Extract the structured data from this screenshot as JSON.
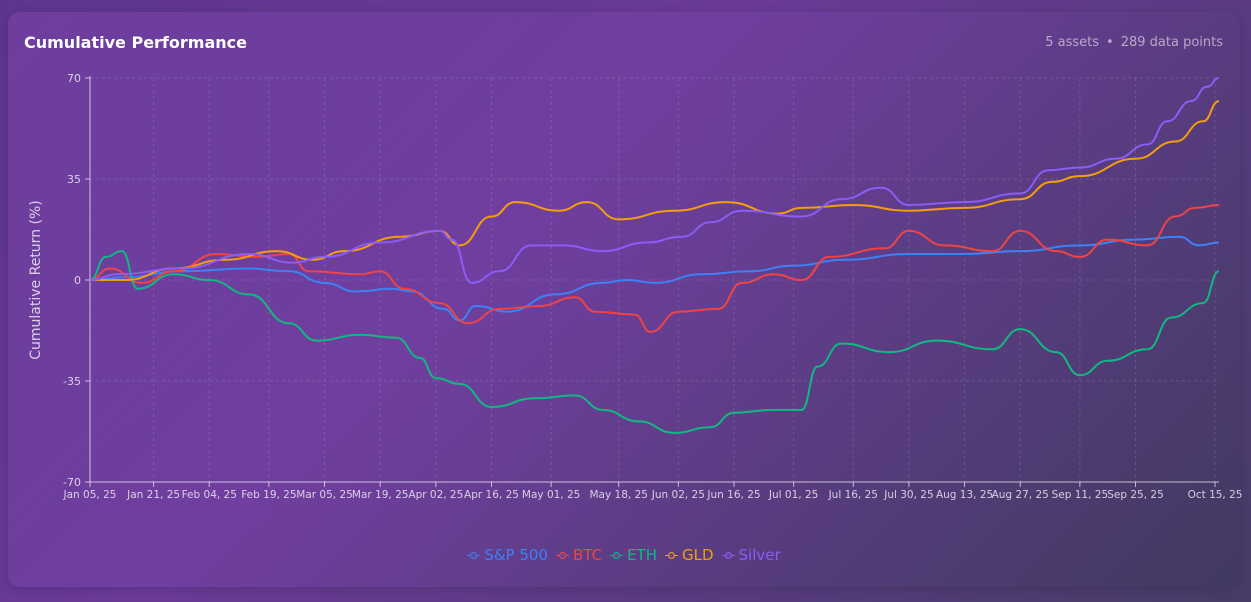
{
  "header": {
    "title": "Cumulative Performance",
    "assets": "5 assets",
    "separator": "•",
    "points": "289 data points"
  },
  "chart_data": {
    "type": "line",
    "ylabel": "Cumulative Return (%)",
    "xlabel": "",
    "ylim": [
      -70,
      70
    ],
    "yticks": [
      -70,
      -35,
      0,
      35,
      70
    ],
    "x_range": [
      "2025-01-05",
      "2025-10-16"
    ],
    "xticks": [
      {
        "date": "2025-01-05",
        "label": "Jan 05, 25"
      },
      {
        "date": "2025-01-21",
        "label": "Jan 21, 25"
      },
      {
        "date": "2025-02-04",
        "label": "Feb 04, 25"
      },
      {
        "date": "2025-02-19",
        "label": "Feb 19, 25"
      },
      {
        "date": "2025-03-05",
        "label": "Mar 05, 25"
      },
      {
        "date": "2025-03-19",
        "label": "Mar 19, 25"
      },
      {
        "date": "2025-04-02",
        "label": "Apr 02, 25"
      },
      {
        "date": "2025-04-16",
        "label": "Apr 16, 25"
      },
      {
        "date": "2025-05-01",
        "label": "May 01, 25"
      },
      {
        "date": "2025-05-18",
        "label": "May 18, 25"
      },
      {
        "date": "2025-06-02",
        "label": "Jun 02, 25"
      },
      {
        "date": "2025-06-16",
        "label": "Jun 16, 25"
      },
      {
        "date": "2025-07-01",
        "label": "Jul 01, 25"
      },
      {
        "date": "2025-07-16",
        "label": "Jul 16, 25"
      },
      {
        "date": "2025-07-30",
        "label": "Jul 30, 25"
      },
      {
        "date": "2025-08-13",
        "label": "Aug 13, 25"
      },
      {
        "date": "2025-08-27",
        "label": "Aug 27, 25"
      },
      {
        "date": "2025-09-11",
        "label": "Sep 11, 25"
      },
      {
        "date": "2025-09-25",
        "label": "Sep 25, 25"
      },
      {
        "date": "2025-10-15",
        "label": "Oct 15, 25"
      }
    ],
    "grid": true,
    "legend": "bottom-center",
    "series": [
      {
        "name": "S&P 500",
        "color": "#3b82f6",
        "points": [
          [
            "2025-01-05",
            0
          ],
          [
            "2025-01-14",
            1
          ],
          [
            "2025-01-28",
            3
          ],
          [
            "2025-02-14",
            4
          ],
          [
            "2025-02-24",
            3
          ],
          [
            "2025-03-05",
            -1
          ],
          [
            "2025-03-13",
            -4
          ],
          [
            "2025-03-22",
            -3
          ],
          [
            "2025-03-27",
            -4
          ],
          [
            "2025-04-04",
            -10
          ],
          [
            "2025-04-08",
            -14
          ],
          [
            "2025-04-12",
            -9
          ],
          [
            "2025-04-20",
            -11
          ],
          [
            "2025-05-02",
            -5
          ],
          [
            "2025-05-14",
            -1
          ],
          [
            "2025-05-20",
            0
          ],
          [
            "2025-05-27",
            -1
          ],
          [
            "2025-06-08",
            2
          ],
          [
            "2025-06-20",
            3
          ],
          [
            "2025-07-01",
            5
          ],
          [
            "2025-07-14",
            7
          ],
          [
            "2025-07-30",
            9
          ],
          [
            "2025-08-13",
            9
          ],
          [
            "2025-08-27",
            10
          ],
          [
            "2025-09-11",
            12
          ],
          [
            "2025-09-25",
            14
          ],
          [
            "2025-10-06",
            15
          ],
          [
            "2025-10-11",
            12
          ],
          [
            "2025-10-16",
            13
          ]
        ]
      },
      {
        "name": "BTC",
        "color": "#ef4444",
        "points": [
          [
            "2025-01-05",
            0
          ],
          [
            "2025-01-10",
            4
          ],
          [
            "2025-01-18",
            -1
          ],
          [
            "2025-01-26",
            3
          ],
          [
            "2025-02-06",
            9
          ],
          [
            "2025-02-16",
            8
          ],
          [
            "2025-02-24",
            9
          ],
          [
            "2025-03-01",
            3
          ],
          [
            "2025-03-14",
            2
          ],
          [
            "2025-03-19",
            3
          ],
          [
            "2025-03-25",
            -3
          ],
          [
            "2025-04-03",
            -8
          ],
          [
            "2025-04-10",
            -15
          ],
          [
            "2025-04-18",
            -10
          ],
          [
            "2025-04-28",
            -9
          ],
          [
            "2025-05-07",
            -6
          ],
          [
            "2025-05-12",
            -11
          ],
          [
            "2025-05-22",
            -12
          ],
          [
            "2025-05-26",
            -18
          ],
          [
            "2025-06-02",
            -11
          ],
          [
            "2025-06-12",
            -10
          ],
          [
            "2025-06-18",
            -1
          ],
          [
            "2025-06-26",
            2
          ],
          [
            "2025-07-03",
            0
          ],
          [
            "2025-07-10",
            8
          ],
          [
            "2025-07-24",
            11
          ],
          [
            "2025-07-30",
            17
          ],
          [
            "2025-08-08",
            12
          ],
          [
            "2025-08-20",
            10
          ],
          [
            "2025-08-27",
            17
          ],
          [
            "2025-09-05",
            10
          ],
          [
            "2025-09-11",
            8
          ],
          [
            "2025-09-18",
            14
          ],
          [
            "2025-09-28",
            12
          ],
          [
            "2025-10-05",
            22
          ],
          [
            "2025-10-10",
            25
          ],
          [
            "2025-10-16",
            26
          ]
        ]
      },
      {
        "name": "ETH",
        "color": "#10b981",
        "points": [
          [
            "2025-01-05",
            0
          ],
          [
            "2025-01-09",
            8
          ],
          [
            "2025-01-13",
            10
          ],
          [
            "2025-01-17",
            -3
          ],
          [
            "2025-01-26",
            2
          ],
          [
            "2025-02-04",
            0
          ],
          [
            "2025-02-14",
            -5
          ],
          [
            "2025-02-24",
            -15
          ],
          [
            "2025-03-03",
            -21
          ],
          [
            "2025-03-14",
            -19
          ],
          [
            "2025-03-23",
            -20
          ],
          [
            "2025-03-29",
            -27
          ],
          [
            "2025-04-02",
            -34
          ],
          [
            "2025-04-08",
            -36
          ],
          [
            "2025-04-16",
            -44
          ],
          [
            "2025-04-27",
            -41
          ],
          [
            "2025-05-07",
            -40
          ],
          [
            "2025-05-14",
            -45
          ],
          [
            "2025-05-23",
            -49
          ],
          [
            "2025-06-01",
            -53
          ],
          [
            "2025-06-10",
            -51
          ],
          [
            "2025-06-16",
            -46
          ],
          [
            "2025-06-26",
            -45
          ],
          [
            "2025-07-03",
            -45
          ],
          [
            "2025-07-07",
            -30
          ],
          [
            "2025-07-13",
            -22
          ],
          [
            "2025-07-25",
            -25
          ],
          [
            "2025-08-06",
            -21
          ],
          [
            "2025-08-20",
            -24
          ],
          [
            "2025-08-27",
            -17
          ],
          [
            "2025-09-05",
            -25
          ],
          [
            "2025-09-11",
            -33
          ],
          [
            "2025-09-18",
            -28
          ],
          [
            "2025-09-28",
            -24
          ],
          [
            "2025-10-04",
            -13
          ],
          [
            "2025-10-12",
            -8
          ],
          [
            "2025-10-16",
            3
          ]
        ]
      },
      {
        "name": "GLD",
        "color": "#f59e0b",
        "points": [
          [
            "2025-01-05",
            0
          ],
          [
            "2025-01-14",
            0
          ],
          [
            "2025-01-26",
            4
          ],
          [
            "2025-02-08",
            7
          ],
          [
            "2025-02-21",
            10
          ],
          [
            "2025-03-02",
            7
          ],
          [
            "2025-03-10",
            10
          ],
          [
            "2025-03-24",
            15
          ],
          [
            "2025-04-03",
            17
          ],
          [
            "2025-04-08",
            12
          ],
          [
            "2025-04-16",
            22
          ],
          [
            "2025-04-22",
            27
          ],
          [
            "2025-05-03",
            24
          ],
          [
            "2025-05-10",
            27
          ],
          [
            "2025-05-18",
            21
          ],
          [
            "2025-06-01",
            24
          ],
          [
            "2025-06-14",
            27
          ],
          [
            "2025-06-27",
            23
          ],
          [
            "2025-07-03",
            25
          ],
          [
            "2025-07-16",
            26
          ],
          [
            "2025-07-30",
            24
          ],
          [
            "2025-08-13",
            25
          ],
          [
            "2025-08-27",
            28
          ],
          [
            "2025-09-04",
            34
          ],
          [
            "2025-09-11",
            36
          ],
          [
            "2025-09-25",
            42
          ],
          [
            "2025-10-05",
            48
          ],
          [
            "2025-10-12",
            55
          ],
          [
            "2025-10-16",
            62
          ]
        ]
      },
      {
        "name": "Silver",
        "color": "#8b5cf6",
        "points": [
          [
            "2025-01-05",
            0
          ],
          [
            "2025-01-12",
            2
          ],
          [
            "2025-01-28",
            4
          ],
          [
            "2025-02-14",
            9
          ],
          [
            "2025-02-25",
            6
          ],
          [
            "2025-03-05",
            8
          ],
          [
            "2025-03-19",
            13
          ],
          [
            "2025-04-03",
            17
          ],
          [
            "2025-04-06",
            14
          ],
          [
            "2025-04-11",
            -1
          ],
          [
            "2025-04-18",
            3
          ],
          [
            "2025-04-26",
            12
          ],
          [
            "2025-05-04",
            12
          ],
          [
            "2025-05-14",
            10
          ],
          [
            "2025-05-25",
            13
          ],
          [
            "2025-06-03",
            15
          ],
          [
            "2025-06-10",
            20
          ],
          [
            "2025-06-18",
            24
          ],
          [
            "2025-07-03",
            22
          ],
          [
            "2025-07-13",
            28
          ],
          [
            "2025-07-23",
            32
          ],
          [
            "2025-07-30",
            26
          ],
          [
            "2025-08-13",
            27
          ],
          [
            "2025-08-27",
            30
          ],
          [
            "2025-09-03",
            38
          ],
          [
            "2025-09-11",
            39
          ],
          [
            "2025-09-20",
            42
          ],
          [
            "2025-09-28",
            47
          ],
          [
            "2025-10-03",
            55
          ],
          [
            "2025-10-09",
            62
          ],
          [
            "2025-10-13",
            67
          ],
          [
            "2025-10-16",
            70
          ]
        ]
      }
    ]
  }
}
